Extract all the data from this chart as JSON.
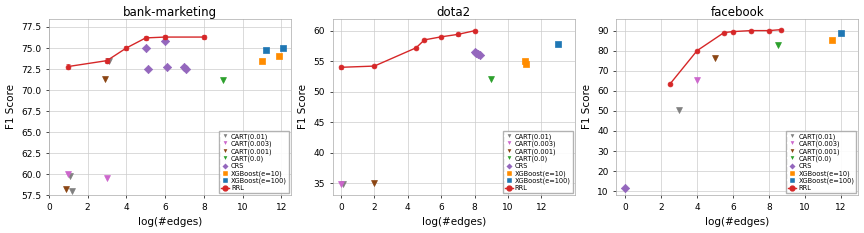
{
  "charts": [
    {
      "title": "bank-marketing",
      "xlabel": "log(#edges)",
      "ylabel": "F1 Score",
      "xlim": [
        0,
        12.5
      ],
      "ylim": [
        57.5,
        78.5
      ],
      "xticks": [
        0,
        2,
        4,
        6,
        8,
        10,
        12
      ],
      "yticks": [
        57.5,
        60.0,
        62.5,
        65.0,
        67.5,
        70.0,
        72.5,
        75.0,
        77.5
      ],
      "rrl": {
        "x": [
          1,
          3,
          4,
          5,
          6,
          8
        ],
        "y": [
          72.8,
          73.5,
          75.0,
          76.2,
          76.3,
          76.3
        ],
        "yerr": [
          0.3,
          0.3,
          0.2,
          0.2,
          0.2,
          0.2
        ]
      },
      "cart_01": {
        "x": [
          1.1,
          1.2,
          3.1
        ],
        "y": [
          59.8,
          58.0,
          73.5
        ]
      },
      "cart_003": {
        "x": [
          1.0,
          3.0
        ],
        "y": [
          60.0,
          59.5
        ]
      },
      "cart_001": {
        "x": [
          0.9,
          2.9
        ],
        "y": [
          58.2,
          71.3
        ]
      },
      "cart_00": {
        "x": [
          9.0
        ],
        "y": [
          71.2
        ]
      },
      "crs": {
        "x": [
          5.0,
          5.1,
          6.0,
          6.1,
          7.0,
          7.1
        ],
        "y": [
          75.0,
          72.5,
          75.8,
          72.8,
          72.8,
          72.5
        ]
      },
      "xgb_10": {
        "x": [
          11.0,
          11.9
        ],
        "y": [
          73.5,
          74.0
        ]
      },
      "xgb_100": {
        "x": [
          11.2,
          12.1
        ],
        "y": [
          74.8,
          75.0
        ]
      }
    },
    {
      "title": "dota2",
      "xlabel": "log(#edges)",
      "ylabel": "F1 Score",
      "xlim": [
        -0.5,
        14
      ],
      "ylim": [
        33,
        62
      ],
      "xticks": [
        0,
        2,
        4,
        6,
        8,
        10,
        12
      ],
      "yticks": [
        35,
        40,
        45,
        50,
        55,
        60
      ],
      "rrl": {
        "x": [
          0,
          2,
          4.5,
          5,
          6,
          7,
          8
        ],
        "y": [
          54.0,
          54.2,
          57.2,
          58.5,
          59.0,
          59.4,
          60.0
        ],
        "yerr": [
          0.2,
          0.2,
          0.2,
          0.2,
          0.2,
          0.2,
          0.2
        ]
      },
      "cart_01": {
        "x": [
          0.1
        ],
        "y": [
          34.8
        ]
      },
      "cart_003": {
        "x": [
          0.0
        ],
        "y": [
          34.8
        ]
      },
      "cart_001": {
        "x": [
          2.0
        ],
        "y": [
          35.0
        ]
      },
      "cart_00": {
        "x": [
          9.0
        ],
        "y": [
          52.0
        ]
      },
      "crs": {
        "x": [
          8.0,
          8.1,
          8.2,
          8.3
        ],
        "y": [
          56.5,
          56.3,
          56.2,
          56.0
        ]
      },
      "xgb_10": {
        "x": [
          11.0,
          11.1
        ],
        "y": [
          55.0,
          54.5
        ]
      },
      "xgb_100": {
        "x": [
          13.0
        ],
        "y": [
          57.8
        ]
      }
    },
    {
      "title": "facebook",
      "xlabel": "log(#edges)",
      "ylabel": "F1 Score",
      "xlim": [
        -0.5,
        13
      ],
      "ylim": [
        8,
        96
      ],
      "xticks": [
        0,
        2,
        4,
        6,
        8,
        10,
        12
      ],
      "yticks": [
        10,
        20,
        30,
        40,
        50,
        60,
        70,
        80,
        90
      ],
      "rrl": {
        "x": [
          2.5,
          4.0,
          5.5,
          6.0,
          7.0,
          8.0,
          8.7
        ],
        "y": [
          63.5,
          80.0,
          89.0,
          89.5,
          90.0,
          90.0,
          90.5
        ],
        "yerr": [
          0.5,
          0.5,
          0.3,
          0.3,
          0.3,
          0.3,
          0.3
        ]
      },
      "cart_01": {
        "x": [
          3.0
        ],
        "y": [
          50.5
        ]
      },
      "cart_003": {
        "x": [
          4.0
        ],
        "y": [
          65.5
        ]
      },
      "cart_001": {
        "x": [
          5.0
        ],
        "y": [
          76.5
        ]
      },
      "cart_00": {
        "x": [
          8.5
        ],
        "y": [
          83.0
        ]
      },
      "crs": {
        "x": [
          0.0
        ],
        "y": [
          11.5
        ]
      },
      "xgb_10": {
        "x": [
          11.5
        ],
        "y": [
          85.5
        ]
      },
      "xgb_100": {
        "x": [
          12.0
        ],
        "y": [
          89.0
        ]
      }
    }
  ],
  "colors": {
    "cart_01": "#808080",
    "cart_003": "#cc66cc",
    "cart_001": "#8b4513",
    "cart_00": "#2ca02c",
    "crs": "#9467bd",
    "xgb_10": "#ff8c00",
    "xgb_100": "#1f77b4",
    "rrl": "#d62728"
  },
  "bg_color": "#ffffff"
}
